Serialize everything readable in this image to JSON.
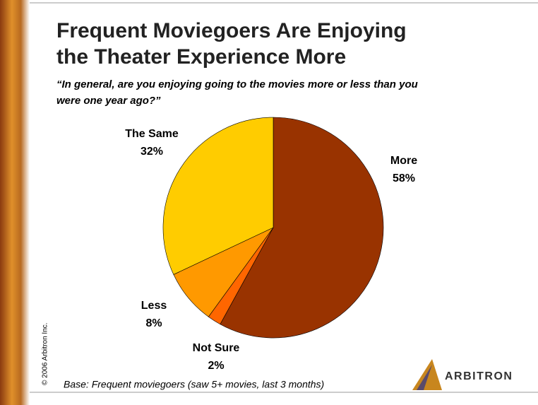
{
  "chart_data": {
    "type": "pie",
    "title": [
      "Frequent Moviegoers Are Enjoying",
      "the Theater Experience More"
    ],
    "subtitle": [
      "“In general, are you enjoying going to the movies more or less than you",
      "were one year ago?”"
    ],
    "categories": [
      "More",
      "Not Sure",
      "Less",
      "The Same"
    ],
    "values": [
      58,
      2,
      8,
      32
    ],
    "value_labels": [
      "58%",
      "2%",
      "8%",
      "32%"
    ],
    "colors": [
      "#993300",
      "#ff6600",
      "#ff9900",
      "#ffcc00"
    ],
    "note": "Base:  Frequent moviegoers (saw 5+ movies, last 3 months)"
  },
  "copyright": "© 2006 Arbitron Inc.",
  "logo": "ARBITRON"
}
